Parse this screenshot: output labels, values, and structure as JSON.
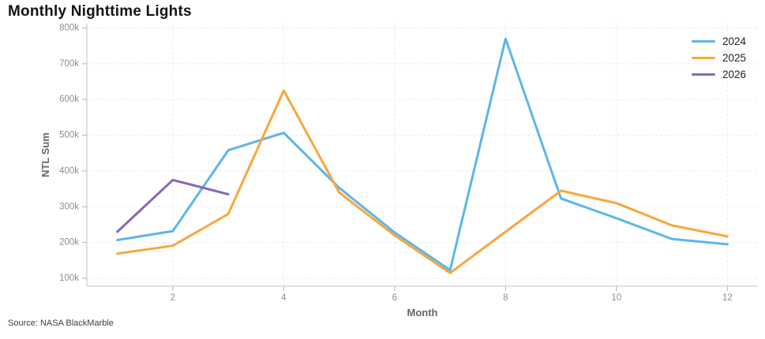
{
  "title": "Monthly Nighttime Lights",
  "source": "Source: NASA BlackMarble",
  "colors": {
    "title": "#141414",
    "axis_title": "#666666",
    "tick_label": "#8f8f8f",
    "gridline": "#ebebeb",
    "axis_line": "#d6d6d6",
    "tick_mark": "#b3b3b3",
    "legend_text": "#222222",
    "background": "#ffffff"
  },
  "chart_data": {
    "type": "line",
    "title": "Monthly Nighttime Lights",
    "xlabel": "Month",
    "ylabel": "NTL Sum",
    "grid": true,
    "legend_position": "top-right",
    "xlim": [
      0.45,
      12.55
    ],
    "ylim": [
      78000,
      812000
    ],
    "x_ticks": [
      2,
      4,
      6,
      8,
      10,
      12
    ],
    "x_tick_labels": [
      "2",
      "4",
      "6",
      "8",
      "10",
      "12"
    ],
    "y_ticks": [
      100000,
      200000,
      300000,
      400000,
      500000,
      600000,
      700000,
      800000
    ],
    "y_tick_labels": [
      "100k",
      "200k",
      "300k",
      "400k",
      "500k",
      "600k",
      "700k",
      "800k"
    ],
    "series": [
      {
        "name": "2024",
        "color": "#5db6e8",
        "x": [
          1,
          2,
          3,
          4,
          5,
          6,
          7,
          8,
          9,
          10,
          11,
          12
        ],
        "values": [
          207000,
          232000,
          458000,
          507000,
          353000,
          228000,
          123000,
          770000,
          323000,
          268000,
          210000,
          195000
        ]
      },
      {
        "name": "2025",
        "color": "#f9a63d",
        "x": [
          1,
          2,
          3,
          4,
          5,
          6,
          7,
          8,
          9,
          10,
          11,
          12
        ],
        "values": [
          169000,
          191000,
          280000,
          625000,
          340000,
          220000,
          115000,
          230000,
          345000,
          310000,
          248000,
          217000
        ]
      },
      {
        "name": "2026",
        "color": "#8767b8",
        "x": [
          1,
          2,
          3
        ],
        "values": [
          230000,
          375000,
          335000
        ]
      }
    ]
  }
}
